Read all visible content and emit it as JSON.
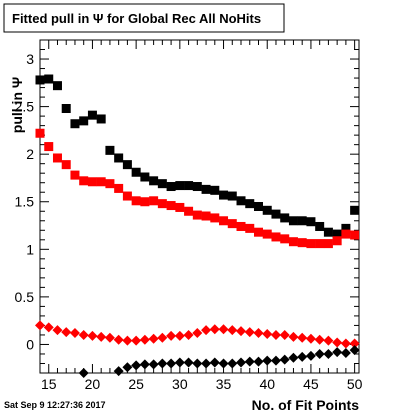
{
  "chart_data": {
    "type": "scatter",
    "title": "Fitted pull in Ψ  for Global Rec All NoHits",
    "xlabel": "No. of Fit Points",
    "ylabel": "pull in Ψ",
    "xlim": [
      14,
      50.5
    ],
    "ylim": [
      -0.3,
      3.2
    ],
    "x_ticks": [
      15,
      20,
      25,
      30,
      35,
      40,
      45,
      50
    ],
    "y_ticks": [
      0,
      0.5,
      1,
      1.5,
      2,
      2.5,
      3
    ],
    "x_tick_labels": [
      "15",
      "20",
      "25",
      "30",
      "35",
      "40",
      "45",
      "50"
    ],
    "y_tick_labels": [
      "0",
      "0.5",
      "1",
      "1.5",
      "2",
      "2.5",
      "3"
    ],
    "grid": false,
    "legend": "none",
    "series": [
      {
        "marker": "square",
        "color": "#000000",
        "points": [
          [
            14,
            2.78
          ],
          [
            15,
            2.79
          ],
          [
            16,
            2.72
          ],
          [
            17,
            2.48
          ],
          [
            18,
            2.32
          ],
          [
            19,
            2.35
          ],
          [
            20,
            2.41
          ],
          [
            21,
            2.37
          ],
          [
            22,
            2.04
          ],
          [
            23,
            1.96
          ],
          [
            24,
            1.89
          ],
          [
            25,
            1.81
          ],
          [
            26,
            1.76
          ],
          [
            27,
            1.72
          ],
          [
            28,
            1.69
          ],
          [
            29,
            1.66
          ],
          [
            30,
            1.67
          ],
          [
            31,
            1.67
          ],
          [
            32,
            1.66
          ],
          [
            33,
            1.63
          ],
          [
            34,
            1.62
          ],
          [
            35,
            1.57
          ],
          [
            36,
            1.56
          ],
          [
            37,
            1.51
          ],
          [
            38,
            1.48
          ],
          [
            39,
            1.45
          ],
          [
            40,
            1.41
          ],
          [
            41,
            1.37
          ],
          [
            42,
            1.33
          ],
          [
            43,
            1.3
          ],
          [
            44,
            1.3
          ],
          [
            45,
            1.29
          ],
          [
            46,
            1.24
          ],
          [
            47,
            1.18
          ],
          [
            48,
            1.16
          ],
          [
            49,
            1.22
          ],
          [
            50,
            1.41
          ]
        ]
      },
      {
        "marker": "square",
        "color": "#ff0000",
        "points": [
          [
            14,
            2.22
          ],
          [
            15,
            2.08
          ],
          [
            16,
            1.96
          ],
          [
            17,
            1.89
          ],
          [
            18,
            1.78
          ],
          [
            19,
            1.72
          ],
          [
            20,
            1.71
          ],
          [
            21,
            1.71
          ],
          [
            22,
            1.69
          ],
          [
            23,
            1.64
          ],
          [
            24,
            1.56
          ],
          [
            25,
            1.51
          ],
          [
            26,
            1.5
          ],
          [
            27,
            1.51
          ],
          [
            28,
            1.48
          ],
          [
            29,
            1.46
          ],
          [
            30,
            1.44
          ],
          [
            31,
            1.4
          ],
          [
            32,
            1.36
          ],
          [
            33,
            1.35
          ],
          [
            34,
            1.33
          ],
          [
            35,
            1.3
          ],
          [
            36,
            1.27
          ],
          [
            37,
            1.24
          ],
          [
            38,
            1.22
          ],
          [
            39,
            1.18
          ],
          [
            40,
            1.16
          ],
          [
            41,
            1.13
          ],
          [
            42,
            1.11
          ],
          [
            43,
            1.08
          ],
          [
            44,
            1.07
          ],
          [
            45,
            1.06
          ],
          [
            46,
            1.06
          ],
          [
            47,
            1.06
          ],
          [
            48,
            1.09
          ],
          [
            49,
            1.16
          ],
          [
            50,
            1.15
          ]
        ]
      },
      {
        "marker": "diamond",
        "color": "#ff0000",
        "points": [
          [
            14,
            0.2
          ],
          [
            15,
            0.18
          ],
          [
            16,
            0.15
          ],
          [
            17,
            0.13
          ],
          [
            18,
            0.12
          ],
          [
            19,
            0.1
          ],
          [
            20,
            0.09
          ],
          [
            21,
            0.08
          ],
          [
            22,
            0.07
          ],
          [
            23,
            0.05
          ],
          [
            24,
            0.04
          ],
          [
            25,
            0.04
          ],
          [
            26,
            0.05
          ],
          [
            27,
            0.06
          ],
          [
            28,
            0.07
          ],
          [
            29,
            0.09
          ],
          [
            30,
            0.09
          ],
          [
            31,
            0.1
          ],
          [
            32,
            0.12
          ],
          [
            33,
            0.15
          ],
          [
            34,
            0.16
          ],
          [
            35,
            0.16
          ],
          [
            36,
            0.15
          ],
          [
            37,
            0.14
          ],
          [
            38,
            0.13
          ],
          [
            39,
            0.12
          ],
          [
            40,
            0.11
          ],
          [
            41,
            0.1
          ],
          [
            42,
            0.1
          ],
          [
            43,
            0.08
          ],
          [
            44,
            0.07
          ],
          [
            45,
            0.06
          ],
          [
            46,
            0.05
          ],
          [
            47,
            0.04
          ],
          [
            48,
            0.02
          ],
          [
            49,
            0.01
          ],
          [
            50,
            0.01
          ]
        ]
      },
      {
        "marker": "diamond",
        "color": "#000000",
        "points": [
          [
            19,
            -0.3
          ],
          [
            23,
            -0.28
          ],
          [
            24,
            -0.24
          ],
          [
            25,
            -0.22
          ],
          [
            26,
            -0.21
          ],
          [
            27,
            -0.21
          ],
          [
            28,
            -0.2
          ],
          [
            29,
            -0.2
          ],
          [
            30,
            -0.19
          ],
          [
            31,
            -0.19
          ],
          [
            32,
            -0.2
          ],
          [
            33,
            -0.2
          ],
          [
            34,
            -0.19
          ],
          [
            35,
            -0.2
          ],
          [
            36,
            -0.2
          ],
          [
            37,
            -0.19
          ],
          [
            38,
            -0.18
          ],
          [
            39,
            -0.18
          ],
          [
            40,
            -0.17
          ],
          [
            41,
            -0.17
          ],
          [
            42,
            -0.16
          ],
          [
            43,
            -0.14
          ],
          [
            44,
            -0.13
          ],
          [
            45,
            -0.12
          ],
          [
            46,
            -0.1
          ],
          [
            47,
            -0.1
          ],
          [
            48,
            -0.08
          ],
          [
            49,
            -0.09
          ],
          [
            50,
            -0.06
          ]
        ]
      }
    ]
  },
  "footer": {
    "timestamp": "Sat Sep  9 12:27:36 2017"
  }
}
